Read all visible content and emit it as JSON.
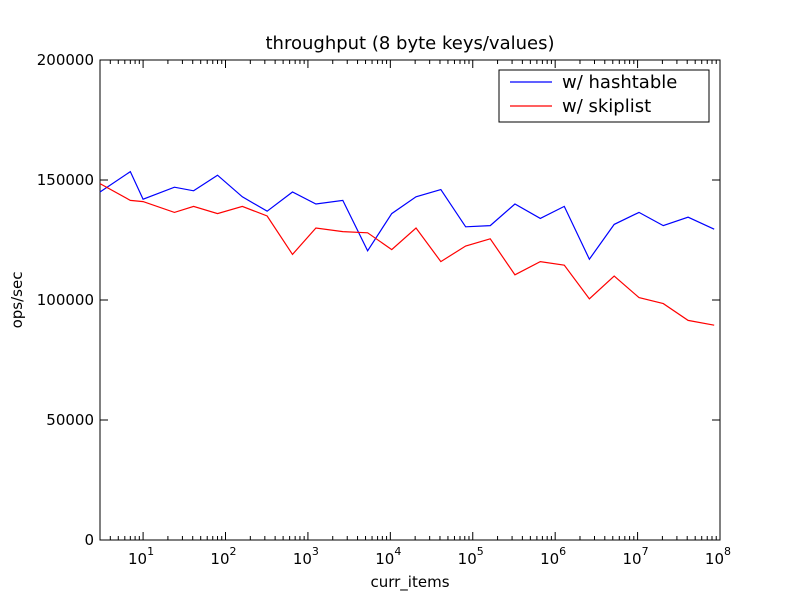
{
  "chart_data": {
    "type": "line",
    "title": "throughput (8 byte keys/values)",
    "xlabel": "curr_items",
    "ylabel": "ops/sec",
    "xscale": "log",
    "xlim": [
      3,
      100000000
    ],
    "ylim": [
      0,
      200000
    ],
    "x_ticks": [
      {
        "value": 10,
        "base": "10",
        "exp": "1"
      },
      {
        "value": 100,
        "base": "10",
        "exp": "2"
      },
      {
        "value": 1000,
        "base": "10",
        "exp": "3"
      },
      {
        "value": 10000,
        "base": "10",
        "exp": "4"
      },
      {
        "value": 100000,
        "base": "10",
        "exp": "5"
      },
      {
        "value": 1000000,
        "base": "10",
        "exp": "6"
      },
      {
        "value": 10000000,
        "base": "10",
        "exp": "7"
      },
      {
        "value": 100000000,
        "base": "10",
        "exp": "8"
      }
    ],
    "y_ticks": [
      {
        "value": 0,
        "label": "0"
      },
      {
        "value": 50000,
        "label": "50000"
      },
      {
        "value": 100000,
        "label": "100000"
      },
      {
        "value": 150000,
        "label": "150000"
      },
      {
        "value": 200000,
        "label": "200000"
      }
    ],
    "grid": false,
    "legend": "top-right",
    "x": [
      3,
      7,
      10,
      24,
      41,
      80,
      160,
      320,
      650,
      1250,
      2650,
      5300,
      10400,
      20500,
      41000,
      82000,
      163000,
      325000,
      660000,
      1290000,
      2600000,
      5200000,
      10400000,
      20500000,
      41000000,
      85000000
    ],
    "series": [
      {
        "name": "w/ hashtable",
        "color": "#0000ff",
        "values": [
          145000,
          153500,
          142000,
          147000,
          145500,
          152000,
          143000,
          137000,
          145000,
          140000,
          141500,
          120500,
          136000,
          143000,
          146000,
          130500,
          131000,
          140000,
          134000,
          139000,
          117000,
          131500,
          136500,
          131000,
          134500,
          129500
        ]
      },
      {
        "name": "w/ skiplist",
        "color": "#ff0000",
        "values": [
          148500,
          141500,
          141000,
          136500,
          139000,
          136000,
          139000,
          135000,
          119000,
          130000,
          128500,
          128000,
          121000,
          130000,
          116000,
          122500,
          125500,
          110500,
          116000,
          114500,
          100500,
          110000,
          101000,
          98500,
          91500,
          89500
        ]
      }
    ]
  }
}
